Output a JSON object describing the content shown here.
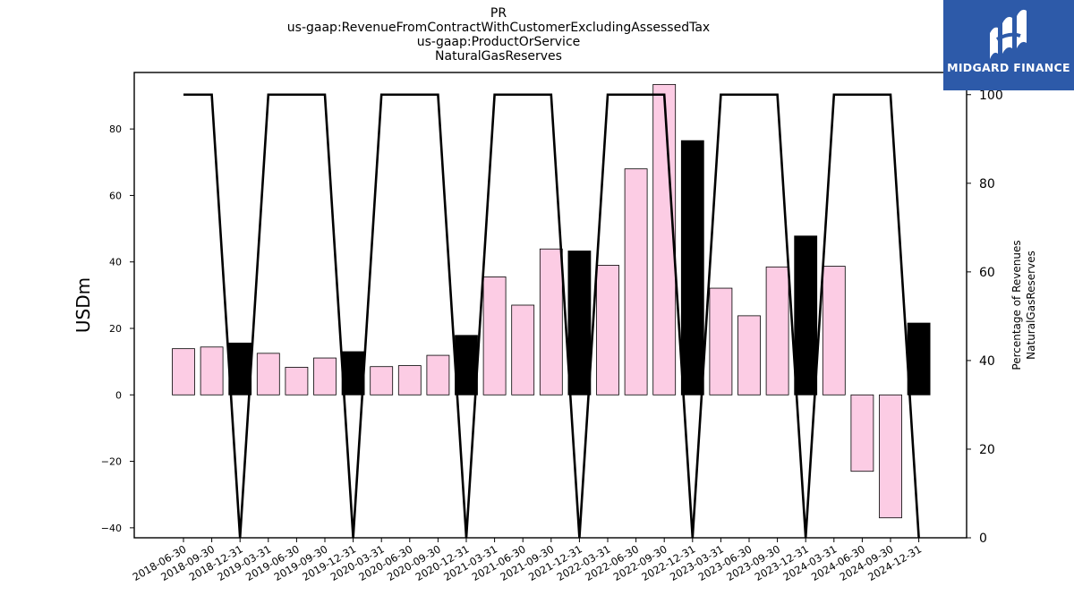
{
  "title_lines": [
    "PR",
    "us-gaap:RevenueFromContractWithCustomerExcludingAssessedTax",
    "us-gaap:ProductOrService",
    "NaturalGasReserves"
  ],
  "logo": {
    "name": "MIDGARD FINANCE"
  },
  "colors": {
    "bar_default": "#fccce4",
    "bar_highlight": "#000000",
    "line": "#000000",
    "logo_bg": "#2d5aa9"
  },
  "chart_data": {
    "type": "bar",
    "categories": [
      "2018-06-30",
      "2018-09-30",
      "2018-12-31",
      "2019-03-31",
      "2019-06-30",
      "2019-09-30",
      "2019-12-31",
      "2020-03-31",
      "2020-06-30",
      "2020-09-30",
      "2020-12-31",
      "2021-03-31",
      "2021-06-30",
      "2021-09-30",
      "2021-12-31",
      "2022-03-31",
      "2022-06-30",
      "2022-09-30",
      "2022-12-31",
      "2023-03-31",
      "2023-06-30",
      "2023-09-30",
      "2023-12-31",
      "2024-03-31",
      "2024-06-30",
      "2024-09-30",
      "2024-12-31"
    ],
    "values": [
      13.9,
      14.4,
      15.6,
      12.5,
      8.3,
      11.1,
      13.0,
      8.5,
      8.8,
      11.9,
      17.9,
      35.5,
      27.0,
      43.9,
      43.3,
      39.0,
      68.0,
      93.4,
      76.5,
      32.1,
      23.8,
      38.5,
      47.8,
      38.7,
      -23.0,
      -37.0,
      21.6
    ],
    "highlight": [
      false,
      false,
      true,
      false,
      false,
      false,
      true,
      false,
      false,
      false,
      true,
      false,
      false,
      false,
      true,
      false,
      false,
      false,
      true,
      false,
      false,
      false,
      true,
      false,
      false,
      false,
      true
    ],
    "ylabel": "USDm",
    "ylim": [
      -43,
      97
    ],
    "yticks": [
      -40,
      -20,
      0,
      20,
      40,
      60,
      80
    ],
    "secondary": {
      "ylabel_lines": [
        "Percentage of Revenues",
        "NaturalGasReserves"
      ],
      "ylim": [
        0,
        105
      ],
      "yticks": [
        0,
        20,
        40,
        60,
        80,
        100
      ],
      "values": [
        100,
        100,
        0,
        100,
        100,
        100,
        0,
        100,
        100,
        100,
        0,
        100,
        100,
        100,
        0,
        100,
        100,
        100,
        0,
        100,
        100,
        100,
        0,
        100,
        100,
        100,
        0
      ]
    },
    "grid": false
  }
}
